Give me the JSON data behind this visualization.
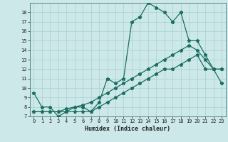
{
  "title": "",
  "xlabel": "Humidex (Indice chaleur)",
  "ylabel": "",
  "bg_color": "#cce8e8",
  "grid_color": "#aacfcf",
  "line_color": "#1a6e60",
  "xlim": [
    -0.5,
    23.5
  ],
  "ylim": [
    7,
    19
  ],
  "xticks": [
    0,
    1,
    2,
    3,
    4,
    5,
    6,
    7,
    8,
    9,
    10,
    11,
    12,
    13,
    14,
    15,
    16,
    17,
    18,
    19,
    20,
    21,
    22,
    23
  ],
  "yticks": [
    7,
    8,
    9,
    10,
    11,
    12,
    13,
    14,
    15,
    16,
    17,
    18
  ],
  "line1_x": [
    0,
    1,
    2,
    3,
    4,
    5,
    6,
    7,
    8,
    9,
    10,
    11,
    12,
    13,
    14,
    15,
    16,
    17,
    18,
    19,
    20,
    21,
    22,
    23
  ],
  "line1_y": [
    9.5,
    8.0,
    8.0,
    7.0,
    7.5,
    8.0,
    8.0,
    7.5,
    8.5,
    11.0,
    10.5,
    11.0,
    17.0,
    17.5,
    19.0,
    18.5,
    18.0,
    17.0,
    18.0,
    15.0,
    15.0,
    13.5,
    12.0,
    10.5
  ],
  "line2_x": [
    0,
    1,
    2,
    3,
    4,
    5,
    6,
    7,
    8,
    9,
    10,
    11,
    12,
    13,
    14,
    15,
    16,
    17,
    18,
    19,
    20,
    21,
    22,
    23
  ],
  "line2_y": [
    7.5,
    7.5,
    7.5,
    7.5,
    7.8,
    8.0,
    8.2,
    8.5,
    9.0,
    9.5,
    10.0,
    10.5,
    11.0,
    11.5,
    12.0,
    12.5,
    13.0,
    13.5,
    14.0,
    14.5,
    14.0,
    13.0,
    12.0,
    12.0
  ],
  "line3_x": [
    0,
    1,
    2,
    3,
    4,
    5,
    6,
    7,
    8,
    9,
    10,
    11,
    12,
    13,
    14,
    15,
    16,
    17,
    18,
    19,
    20,
    21,
    22,
    23
  ],
  "line3_y": [
    7.5,
    7.5,
    7.5,
    7.5,
    7.5,
    7.5,
    7.5,
    7.5,
    8.0,
    8.5,
    9.0,
    9.5,
    10.0,
    10.5,
    11.0,
    11.5,
    12.0,
    12.0,
    12.5,
    13.0,
    13.5,
    12.0,
    12.0,
    12.0
  ],
  "marker": "*",
  "markersize": 3.5,
  "linewidth": 0.9,
  "tick_fontsize": 5.0,
  "xlabel_fontsize": 6.0
}
